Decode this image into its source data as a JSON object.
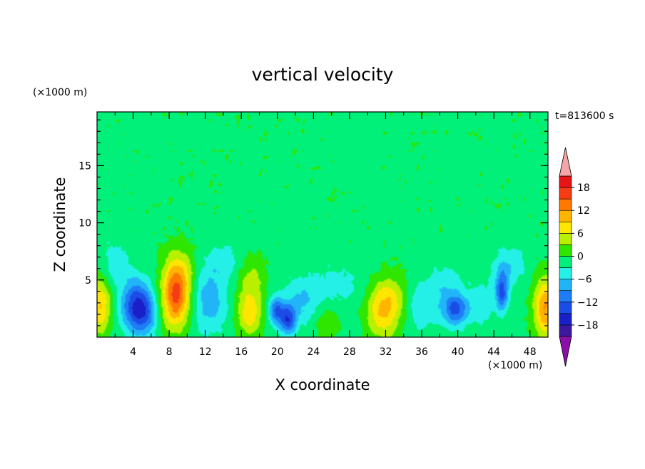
{
  "chart_data": {
    "type": "heatmap",
    "title": "vertical velocity",
    "time_label": "t=813600 s",
    "xlabel": "X coordinate",
    "ylabel": "Z coordinate",
    "x_unit": "(×1000 m)",
    "y_unit": "(×1000 m)",
    "xlim": [
      0,
      50
    ],
    "ylim": [
      0,
      19.7
    ],
    "x_ticks": [
      4,
      8,
      12,
      16,
      20,
      24,
      28,
      32,
      36,
      40,
      44,
      48
    ],
    "y_ticks": [
      5,
      10,
      15
    ],
    "colorbar": {
      "tick_values": [
        18,
        12,
        6,
        0,
        -6,
        -12,
        -18
      ],
      "tick_labels": [
        "18",
        "12",
        "6",
        "0",
        "−6",
        "−12",
        "−18"
      ],
      "levels": [
        -21,
        -18,
        -15,
        -12,
        -9,
        -6,
        -3,
        0,
        3,
        6,
        9,
        12,
        15,
        18,
        21
      ],
      "colors": [
        "#7a00a0",
        "#3c1aa0",
        "#1a20c8",
        "#1b4de6",
        "#1e7cf5",
        "#21b5f7",
        "#24f0e8",
        "#00f07a",
        "#2ee600",
        "#b8f000",
        "#ffe600",
        "#ffb400",
        "#ff7800",
        "#f53c14",
        "#e61414",
        "#f4a6a6"
      ],
      "extend_low_color": "#8a10a8",
      "extend_high_color": "#f4a6a6"
    },
    "features": [
      {
        "x": 0.4,
        "z": 2.8,
        "value": 10,
        "sx": 0.8,
        "sz": 1.8
      },
      {
        "x": 4.3,
        "z": 2.7,
        "value": -14,
        "sx": 1.1,
        "sz": 1.6
      },
      {
        "x": 5.6,
        "z": 2.0,
        "value": -6,
        "sx": 0.9,
        "sz": 1.4
      },
      {
        "x": 8.7,
        "z": 3.6,
        "value": 16,
        "sx": 1.1,
        "sz": 2.0
      },
      {
        "x": 9.4,
        "z": 5.8,
        "value": 4,
        "sx": 1.2,
        "sz": 1.6
      },
      {
        "x": 12.5,
        "z": 3.3,
        "value": -7,
        "sx": 1.4,
        "sz": 2.0
      },
      {
        "x": 16.9,
        "z": 2.2,
        "value": 9,
        "sx": 1.0,
        "sz": 1.5
      },
      {
        "x": 17.2,
        "z": 5.2,
        "value": 4,
        "sx": 1.1,
        "sz": 1.4
      },
      {
        "x": 19.9,
        "z": 2.3,
        "value": -11,
        "sx": 0.6,
        "sz": 0.9
      },
      {
        "x": 21.2,
        "z": 1.5,
        "value": -12,
        "sx": 0.6,
        "sz": 0.9
      },
      {
        "x": 22.5,
        "z": 3.0,
        "value": -5,
        "sx": 1.2,
        "sz": 1.4
      },
      {
        "x": 25.6,
        "z": 1.3,
        "value": 4,
        "sx": 0.9,
        "sz": 0.9
      },
      {
        "x": 31.7,
        "z": 2.5,
        "value": 11,
        "sx": 1.3,
        "sz": 1.8
      },
      {
        "x": 33.4,
        "z": 3.6,
        "value": 3,
        "sx": 1.0,
        "sz": 1.4
      },
      {
        "x": 35.8,
        "z": 2.6,
        "value": -4,
        "sx": 1.2,
        "sz": 1.6
      },
      {
        "x": 39.8,
        "z": 2.4,
        "value": -11,
        "sx": 1.0,
        "sz": 1.0
      },
      {
        "x": 38.5,
        "z": 4.2,
        "value": -4,
        "sx": 1.4,
        "sz": 1.6
      },
      {
        "x": 44.9,
        "z": 3.9,
        "value": -12,
        "sx": 0.5,
        "sz": 1.2
      },
      {
        "x": 42.7,
        "z": 3.0,
        "value": -4,
        "sx": 1.0,
        "sz": 1.4
      },
      {
        "x": 45.6,
        "z": 6.2,
        "value": -5,
        "sx": 1.3,
        "sz": 1.2
      },
      {
        "x": 49.7,
        "z": 2.6,
        "value": 13,
        "sx": 0.9,
        "sz": 1.8
      },
      {
        "x": 26.5,
        "z": 4.5,
        "value": -3,
        "sx": 3.0,
        "sz": 1.6
      },
      {
        "x": 2.0,
        "z": 6.5,
        "value": -4,
        "sx": 1.2,
        "sz": 1.5
      },
      {
        "x": 14.0,
        "z": 6.8,
        "value": -3,
        "sx": 1.5,
        "sz": 1.2
      }
    ]
  }
}
